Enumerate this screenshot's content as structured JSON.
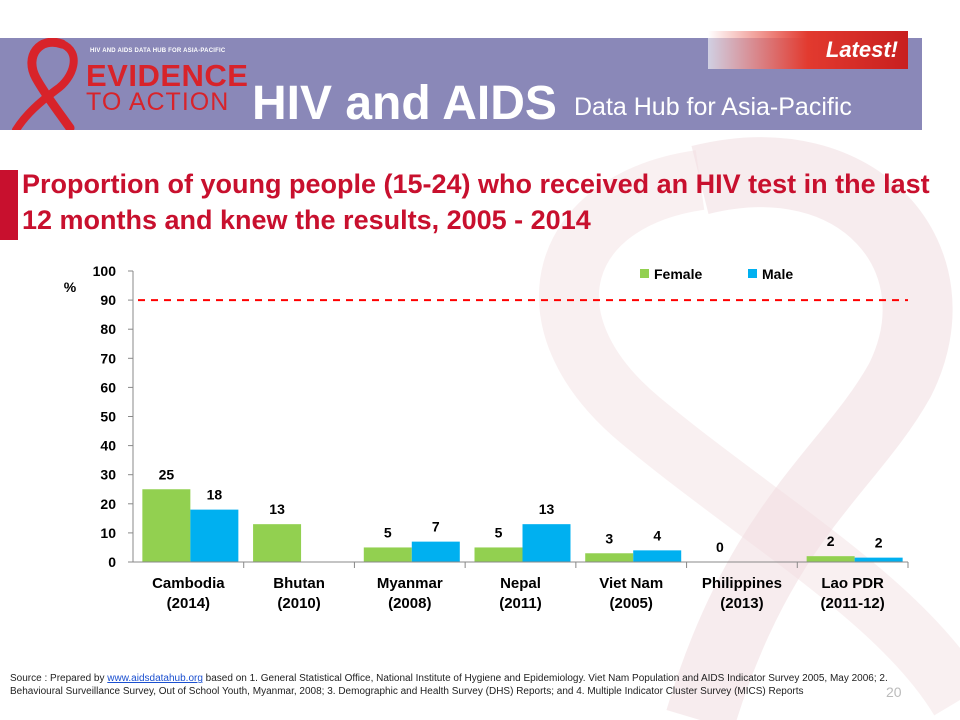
{
  "header": {
    "logo_tagline": "HIV AND AIDS DATA HUB FOR ASIA-PACIFIC",
    "logo_line1": "EVIDENCE",
    "logo_line2": "TO ACTION",
    "title": "HIV and AIDS",
    "subtitle": "Data Hub for Asia-Pacific",
    "latest_label": "Latest!"
  },
  "colors": {
    "header_band": "#8a88b8",
    "accent_red": "#c8102e",
    "female": "#92d050",
    "male": "#00b0f0",
    "target_line": "#ff0000"
  },
  "chart_data": {
    "type": "bar",
    "title": "Proportion of young people (15-24) who received an HIV test in the last 12 months and knew the results, 2005 - 2014",
    "ylabel": "%",
    "ylim": [
      0,
      100
    ],
    "yticks": [
      "0",
      "10",
      "20",
      "30",
      "40",
      "50",
      "60",
      "70",
      "80",
      "90",
      "100"
    ],
    "target_line": 90,
    "legend_position": "top-right",
    "grid": false,
    "categories": [
      {
        "line1": "Cambodia",
        "line2": "(2014)"
      },
      {
        "line1": "Bhutan",
        "line2": "(2010)"
      },
      {
        "line1": "Myanmar",
        "line2": "(2008)"
      },
      {
        "line1": "Nepal",
        "line2": "(2011)"
      },
      {
        "line1": "Viet Nam",
        "line2": "(2005)"
      },
      {
        "line1": "Philippines",
        "line2": "(2013)"
      },
      {
        "line1": "Lao PDR",
        "line2": "(2011-12)"
      }
    ],
    "series": [
      {
        "name": "Female",
        "values": [
          25,
          13,
          5,
          5,
          3,
          0,
          2
        ],
        "labels": [
          "25",
          "13",
          "5",
          "5",
          "3",
          "0",
          "2"
        ]
      },
      {
        "name": "Male",
        "values": [
          18,
          null,
          7,
          13,
          4,
          null,
          1.5
        ],
        "labels": [
          "18",
          "",
          "7",
          "13",
          "4",
          "",
          "2"
        ]
      }
    ]
  },
  "source": {
    "prefix": "Source : Prepared by ",
    "link": "www.aidsdatahub.org",
    "text": " based on 1. General Statistical Office, National Institute of Hygiene and Epidemiology.  Viet Nam Population and AIDS Indicator Survey 2005, May 2006; 2. Behavioural Surveillance Survey, Out of School Youth, Myanmar, 2008; 3. Demographic and Health Survey (DHS) Reports; and 4. Multiple Indicator Cluster Survey (MICS) Reports"
  },
  "slide_number": "20"
}
